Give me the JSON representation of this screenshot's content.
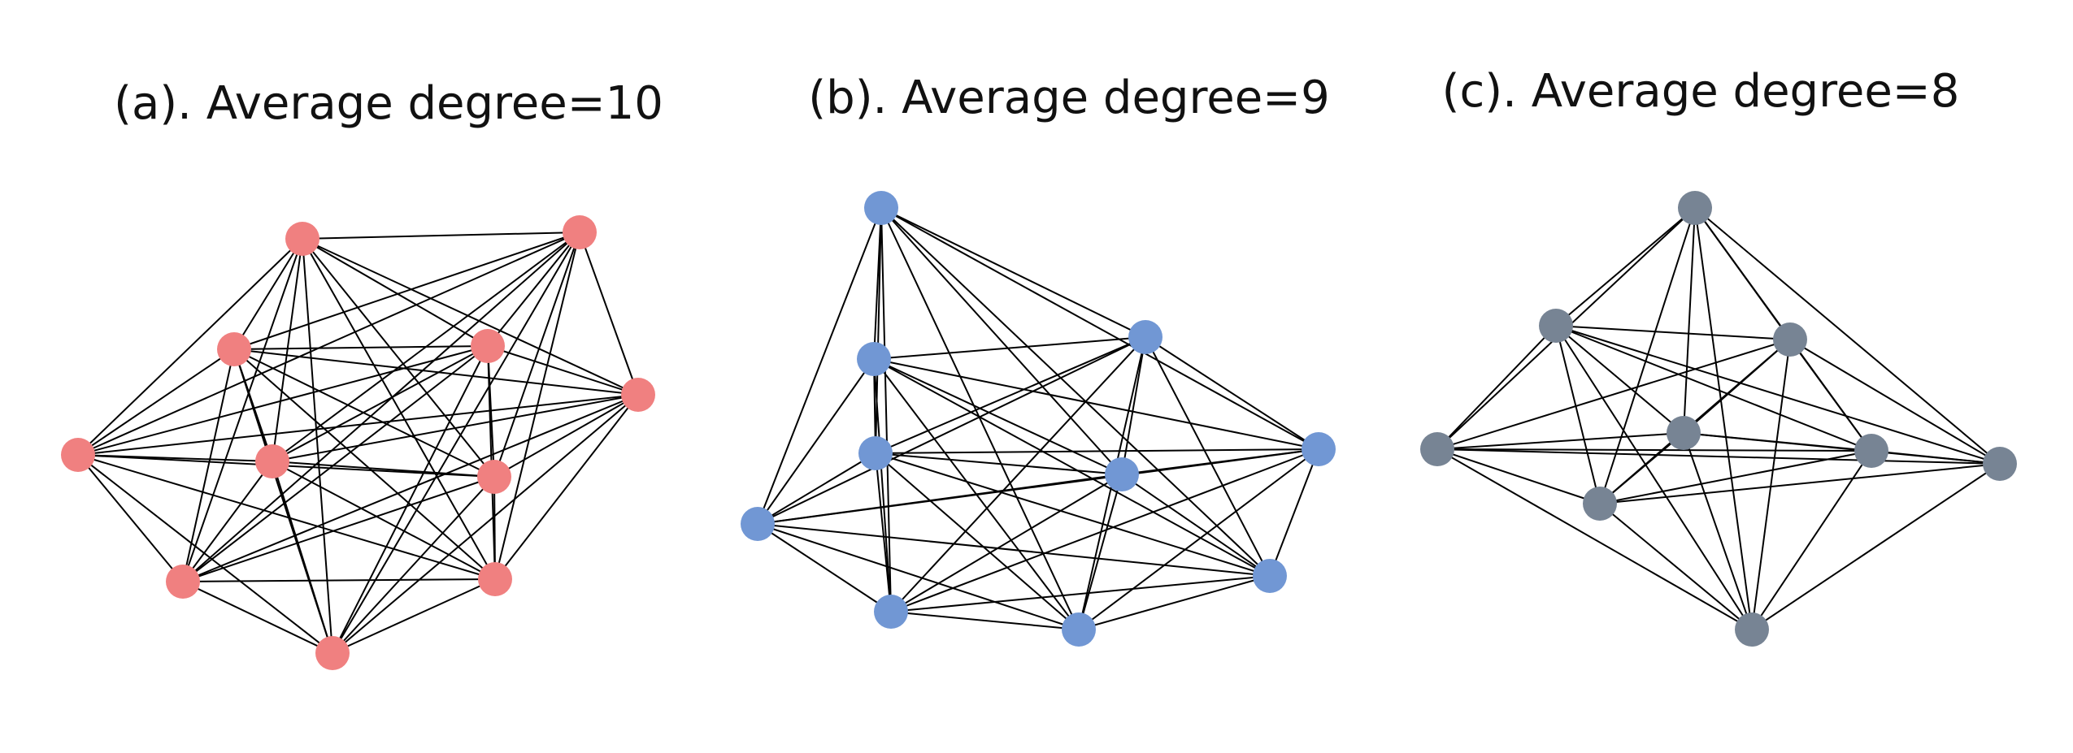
{
  "figure": {
    "panels": [
      {
        "id": "a",
        "title": "(a). Average degree=10",
        "node_color": "#f08080",
        "nodes": [
          "A1",
          "A2",
          "A3",
          "A4",
          "A5",
          "A6",
          "A7",
          "A8",
          "A9",
          "A10",
          "A11"
        ],
        "edges": [
          [
            "A1",
            "A2"
          ],
          [
            "A1",
            "A3"
          ],
          [
            "A1",
            "A4"
          ],
          [
            "A1",
            "A5"
          ],
          [
            "A1",
            "A6"
          ],
          [
            "A1",
            "A7"
          ],
          [
            "A1",
            "A8"
          ],
          [
            "A1",
            "A9"
          ],
          [
            "A1",
            "A10"
          ],
          [
            "A1",
            "A11"
          ],
          [
            "A2",
            "A3"
          ],
          [
            "A2",
            "A4"
          ],
          [
            "A2",
            "A5"
          ],
          [
            "A2",
            "A6"
          ],
          [
            "A2",
            "A7"
          ],
          [
            "A2",
            "A8"
          ],
          [
            "A2",
            "A9"
          ],
          [
            "A2",
            "A10"
          ],
          [
            "A2",
            "A11"
          ],
          [
            "A3",
            "A4"
          ],
          [
            "A3",
            "A5"
          ],
          [
            "A3",
            "A6"
          ],
          [
            "A3",
            "A7"
          ],
          [
            "A3",
            "A8"
          ],
          [
            "A3",
            "A9"
          ],
          [
            "A3",
            "A10"
          ],
          [
            "A3",
            "A11"
          ],
          [
            "A4",
            "A5"
          ],
          [
            "A4",
            "A6"
          ],
          [
            "A4",
            "A7"
          ],
          [
            "A4",
            "A8"
          ],
          [
            "A4",
            "A9"
          ],
          [
            "A4",
            "A10"
          ],
          [
            "A4",
            "A11"
          ],
          [
            "A5",
            "A6"
          ],
          [
            "A5",
            "A7"
          ],
          [
            "A5",
            "A8"
          ],
          [
            "A5",
            "A9"
          ],
          [
            "A5",
            "A10"
          ],
          [
            "A5",
            "A11"
          ],
          [
            "A6",
            "A7"
          ],
          [
            "A6",
            "A8"
          ],
          [
            "A6",
            "A9"
          ],
          [
            "A6",
            "A10"
          ],
          [
            "A6",
            "A11"
          ],
          [
            "A7",
            "A8"
          ],
          [
            "A7",
            "A9"
          ],
          [
            "A7",
            "A10"
          ],
          [
            "A7",
            "A11"
          ],
          [
            "A8",
            "A9"
          ],
          [
            "A8",
            "A10"
          ],
          [
            "A8",
            "A11"
          ],
          [
            "A9",
            "A10"
          ],
          [
            "A9",
            "A11"
          ],
          [
            "A10",
            "A11"
          ]
        ]
      },
      {
        "id": "b",
        "title": "(b). Average degree=9",
        "node_color": "#7197d4",
        "nodes": [
          "B1",
          "B2",
          "B3",
          "B4",
          "B5",
          "B6",
          "B7",
          "B8",
          "B9",
          "B10"
        ],
        "edges": [
          [
            "B1",
            "B2"
          ],
          [
            "B1",
            "B3"
          ],
          [
            "B1",
            "B4"
          ],
          [
            "B1",
            "B5"
          ],
          [
            "B1",
            "B6"
          ],
          [
            "B1",
            "B7"
          ],
          [
            "B1",
            "B8"
          ],
          [
            "B1",
            "B9"
          ],
          [
            "B1",
            "B10"
          ],
          [
            "B2",
            "B3"
          ],
          [
            "B2",
            "B4"
          ],
          [
            "B2",
            "B5"
          ],
          [
            "B2",
            "B6"
          ],
          [
            "B2",
            "B7"
          ],
          [
            "B2",
            "B8"
          ],
          [
            "B2",
            "B9"
          ],
          [
            "B2",
            "B10"
          ],
          [
            "B3",
            "B4"
          ],
          [
            "B3",
            "B5"
          ],
          [
            "B3",
            "B6"
          ],
          [
            "B3",
            "B7"
          ],
          [
            "B3",
            "B8"
          ],
          [
            "B3",
            "B9"
          ],
          [
            "B3",
            "B10"
          ],
          [
            "B4",
            "B5"
          ],
          [
            "B4",
            "B6"
          ],
          [
            "B4",
            "B7"
          ],
          [
            "B4",
            "B8"
          ],
          [
            "B4",
            "B9"
          ],
          [
            "B4",
            "B10"
          ],
          [
            "B5",
            "B6"
          ],
          [
            "B5",
            "B7"
          ],
          [
            "B5",
            "B8"
          ],
          [
            "B5",
            "B9"
          ],
          [
            "B5",
            "B10"
          ],
          [
            "B6",
            "B7"
          ],
          [
            "B6",
            "B8"
          ],
          [
            "B6",
            "B9"
          ],
          [
            "B6",
            "B10"
          ],
          [
            "B7",
            "B8"
          ],
          [
            "B7",
            "B9"
          ],
          [
            "B7",
            "B10"
          ],
          [
            "B8",
            "B9"
          ],
          [
            "B8",
            "B10"
          ],
          [
            "B9",
            "B10"
          ]
        ]
      },
      {
        "id": "c",
        "title": "(c). Average degree=8",
        "node_color": "#778494",
        "nodes": [
          "C1",
          "C2",
          "C3",
          "C4",
          "C5",
          "C6",
          "C7",
          "C8",
          "C9"
        ],
        "edges": [
          [
            "C1",
            "C2"
          ],
          [
            "C1",
            "C3"
          ],
          [
            "C1",
            "C4"
          ],
          [
            "C1",
            "C5"
          ],
          [
            "C1",
            "C6"
          ],
          [
            "C1",
            "C7"
          ],
          [
            "C1",
            "C8"
          ],
          [
            "C1",
            "C9"
          ],
          [
            "C2",
            "C3"
          ],
          [
            "C2",
            "C4"
          ],
          [
            "C2",
            "C5"
          ],
          [
            "C2",
            "C6"
          ],
          [
            "C2",
            "C7"
          ],
          [
            "C2",
            "C8"
          ],
          [
            "C2",
            "C9"
          ],
          [
            "C3",
            "C4"
          ],
          [
            "C3",
            "C5"
          ],
          [
            "C3",
            "C6"
          ],
          [
            "C3",
            "C7"
          ],
          [
            "C3",
            "C8"
          ],
          [
            "C3",
            "C9"
          ],
          [
            "C4",
            "C5"
          ],
          [
            "C4",
            "C6"
          ],
          [
            "C4",
            "C7"
          ],
          [
            "C4",
            "C8"
          ],
          [
            "C4",
            "C9"
          ],
          [
            "C5",
            "C6"
          ],
          [
            "C5",
            "C7"
          ],
          [
            "C5",
            "C8"
          ],
          [
            "C5",
            "C9"
          ],
          [
            "C6",
            "C7"
          ],
          [
            "C6",
            "C8"
          ],
          [
            "C6",
            "C9"
          ],
          [
            "C7",
            "C8"
          ],
          [
            "C7",
            "C9"
          ],
          [
            "C8",
            "C9"
          ]
        ]
      }
    ]
  }
}
